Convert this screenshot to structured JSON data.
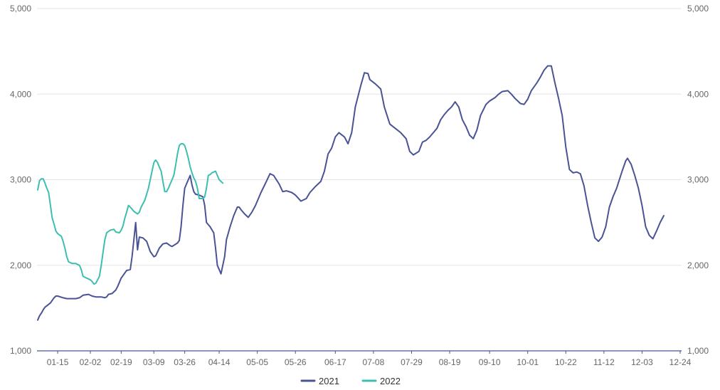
{
  "chart_data": {
    "type": "line",
    "title": "",
    "xlabel": "",
    "ylabel": "",
    "ylim": [
      1000,
      5000
    ],
    "y_ticks": [
      "1,000",
      "2,000",
      "3,000",
      "4,000",
      "5,000"
    ],
    "y_tick_values": [
      1000,
      2000,
      3000,
      4000,
      5000
    ],
    "x_ticks": [
      "01-15",
      "02-02",
      "02-19",
      "03-09",
      "03-26",
      "04-14",
      "05-05",
      "05-26",
      "06-17",
      "07-08",
      "07-29",
      "08-19",
      "09-10",
      "10-01",
      "10-22",
      "11-12",
      "12-03",
      "12-24"
    ],
    "grid": true,
    "legend_position": "bottom-center",
    "colors": {
      "2021": "#4a5394",
      "2022": "#3dbfb0",
      "grid": "#e6e6e6",
      "axis": "#4a5394"
    },
    "series": [
      {
        "name": "2021",
        "points": [
          [
            "01-04",
            1360
          ],
          [
            "01-05",
            1410
          ],
          [
            "01-06",
            1440
          ],
          [
            "01-07",
            1480
          ],
          [
            "01-08",
            1510
          ],
          [
            "01-11",
            1560
          ],
          [
            "01-12",
            1590
          ],
          [
            "01-13",
            1620
          ],
          [
            "01-14",
            1640
          ],
          [
            "01-15",
            1640
          ],
          [
            "01-18",
            1620
          ],
          [
            "01-20",
            1610
          ],
          [
            "01-25",
            1610
          ],
          [
            "01-27",
            1620
          ],
          [
            "01-29",
            1650
          ],
          [
            "02-01",
            1660
          ],
          [
            "02-03",
            1640
          ],
          [
            "02-05",
            1630
          ],
          [
            "02-08",
            1630
          ],
          [
            "02-10",
            1620
          ],
          [
            "02-11",
            1630
          ],
          [
            "02-12",
            1660
          ],
          [
            "02-14",
            1670
          ],
          [
            "02-15",
            1690
          ],
          [
            "02-16",
            1710
          ],
          [
            "02-17",
            1750
          ],
          [
            "02-18",
            1800
          ],
          [
            "02-19",
            1850
          ],
          [
            "02-22",
            1940
          ],
          [
            "02-24",
            1950
          ],
          [
            "02-25",
            2100
          ],
          [
            "02-26",
            2300
          ],
          [
            "02-27",
            2500
          ],
          [
            "02-28",
            2180
          ],
          [
            "03-01",
            2330
          ],
          [
            "03-03",
            2320
          ],
          [
            "03-05",
            2280
          ],
          [
            "03-07",
            2160
          ],
          [
            "03-09",
            2100
          ],
          [
            "03-10",
            2110
          ],
          [
            "03-12",
            2200
          ],
          [
            "03-14",
            2250
          ],
          [
            "03-16",
            2260
          ],
          [
            "03-18",
            2230
          ],
          [
            "03-19",
            2220
          ],
          [
            "03-22",
            2260
          ],
          [
            "03-23",
            2290
          ],
          [
            "03-24",
            2450
          ],
          [
            "03-25",
            2700
          ],
          [
            "03-26",
            2900
          ],
          [
            "03-28",
            3000
          ],
          [
            "03-29",
            3050
          ],
          [
            "03-30",
            2940
          ],
          [
            "03-31",
            2860
          ],
          [
            "04-01",
            2830
          ],
          [
            "04-03",
            2820
          ],
          [
            "04-05",
            2800
          ],
          [
            "04-06",
            2700
          ],
          [
            "04-07",
            2500
          ],
          [
            "04-09",
            2450
          ],
          [
            "04-11",
            2380
          ],
          [
            "04-12",
            2200
          ],
          [
            "04-13",
            2000
          ],
          [
            "04-14",
            1950
          ],
          [
            "04-15",
            1900
          ],
          [
            "04-17",
            2100
          ],
          [
            "04-18",
            2300
          ],
          [
            "04-20",
            2450
          ],
          [
            "04-22",
            2580
          ],
          [
            "04-24",
            2680
          ],
          [
            "04-25",
            2680
          ],
          [
            "04-26",
            2650
          ],
          [
            "04-28",
            2600
          ],
          [
            "04-30",
            2560
          ],
          [
            "05-02",
            2620
          ],
          [
            "05-04",
            2700
          ],
          [
            "05-07",
            2850
          ],
          [
            "05-10",
            2980
          ],
          [
            "05-12",
            3070
          ],
          [
            "05-14",
            3050
          ],
          [
            "05-17",
            2950
          ],
          [
            "05-19",
            2860
          ],
          [
            "05-21",
            2870
          ],
          [
            "05-24",
            2850
          ],
          [
            "05-26",
            2820
          ],
          [
            "05-29",
            2750
          ],
          [
            "06-01",
            2780
          ],
          [
            "06-03",
            2850
          ],
          [
            "06-06",
            2920
          ],
          [
            "06-09",
            2980
          ],
          [
            "06-11",
            3100
          ],
          [
            "06-13",
            3300
          ],
          [
            "06-15",
            3370
          ],
          [
            "06-17",
            3500
          ],
          [
            "06-19",
            3550
          ],
          [
            "06-22",
            3500
          ],
          [
            "06-24",
            3420
          ],
          [
            "06-26",
            3550
          ],
          [
            "06-28",
            3850
          ],
          [
            "07-01",
            4100
          ],
          [
            "07-03",
            4250
          ],
          [
            "07-05",
            4240
          ],
          [
            "07-06",
            4170
          ],
          [
            "07-09",
            4120
          ],
          [
            "07-12",
            4060
          ],
          [
            "07-14",
            3850
          ],
          [
            "07-17",
            3650
          ],
          [
            "07-20",
            3600
          ],
          [
            "07-23",
            3550
          ],
          [
            "07-26",
            3480
          ],
          [
            "07-28",
            3330
          ],
          [
            "07-30",
            3290
          ],
          [
            "08-02",
            3330
          ],
          [
            "08-04",
            3440
          ],
          [
            "08-06",
            3460
          ],
          [
            "08-08",
            3500
          ],
          [
            "08-10",
            3550
          ],
          [
            "08-12",
            3600
          ],
          [
            "08-14",
            3700
          ],
          [
            "08-16",
            3760
          ],
          [
            "08-18",
            3810
          ],
          [
            "08-20",
            3850
          ],
          [
            "08-22",
            3910
          ],
          [
            "08-24",
            3850
          ],
          [
            "08-26",
            3700
          ],
          [
            "08-28",
            3620
          ],
          [
            "08-30",
            3520
          ],
          [
            "09-01",
            3480
          ],
          [
            "09-03",
            3580
          ],
          [
            "09-05",
            3750
          ],
          [
            "09-08",
            3880
          ],
          [
            "09-10",
            3920
          ],
          [
            "09-13",
            3960
          ],
          [
            "09-15",
            4000
          ],
          [
            "09-17",
            4030
          ],
          [
            "09-20",
            4040
          ],
          [
            "09-22",
            4000
          ],
          [
            "09-24",
            3950
          ],
          [
            "09-27",
            3890
          ],
          [
            "09-29",
            3880
          ],
          [
            "10-01",
            3940
          ],
          [
            "10-03",
            4040
          ],
          [
            "10-06",
            4130
          ],
          [
            "10-08",
            4200
          ],
          [
            "10-10",
            4280
          ],
          [
            "10-12",
            4330
          ],
          [
            "10-14",
            4330
          ],
          [
            "10-16",
            4130
          ],
          [
            "10-18",
            3950
          ],
          [
            "10-20",
            3750
          ],
          [
            "10-22",
            3380
          ],
          [
            "10-24",
            3120
          ],
          [
            "10-26",
            3080
          ],
          [
            "10-28",
            3090
          ],
          [
            "10-30",
            3070
          ],
          [
            "11-01",
            2930
          ],
          [
            "11-03",
            2700
          ],
          [
            "11-05",
            2500
          ],
          [
            "11-07",
            2320
          ],
          [
            "11-09",
            2280
          ],
          [
            "11-11",
            2330
          ],
          [
            "11-13",
            2450
          ],
          [
            "11-15",
            2680
          ],
          [
            "11-17",
            2800
          ],
          [
            "11-19",
            2900
          ],
          [
            "11-22",
            3100
          ],
          [
            "11-24",
            3220
          ],
          [
            "11-25",
            3250
          ],
          [
            "11-27",
            3180
          ],
          [
            "11-29",
            3050
          ],
          [
            "12-01",
            2900
          ],
          [
            "12-03",
            2700
          ],
          [
            "12-05",
            2450
          ],
          [
            "12-07",
            2350
          ],
          [
            "12-09",
            2310
          ],
          [
            "12-11",
            2400
          ],
          [
            "12-13",
            2500
          ],
          [
            "12-15",
            2580
          ]
        ]
      },
      {
        "name": "2022",
        "points": [
          [
            "01-04",
            2880
          ],
          [
            "01-05",
            2990
          ],
          [
            "01-06",
            3010
          ],
          [
            "01-07",
            3010
          ],
          [
            "01-08",
            2960
          ],
          [
            "01-09",
            2900
          ],
          [
            "01-10",
            2850
          ],
          [
            "01-11",
            2700
          ],
          [
            "01-12",
            2550
          ],
          [
            "01-13",
            2480
          ],
          [
            "01-14",
            2400
          ],
          [
            "01-15",
            2370
          ],
          [
            "01-17",
            2340
          ],
          [
            "01-18",
            2280
          ],
          [
            "01-19",
            2200
          ],
          [
            "01-20",
            2100
          ],
          [
            "01-21",
            2040
          ],
          [
            "01-23",
            2020
          ],
          [
            "01-25",
            2020
          ],
          [
            "01-27",
            2000
          ],
          [
            "01-28",
            1950
          ],
          [
            "01-29",
            1870
          ],
          [
            "01-31",
            1850
          ],
          [
            "02-02",
            1830
          ],
          [
            "02-03",
            1810
          ],
          [
            "02-04",
            1780
          ],
          [
            "02-05",
            1790
          ],
          [
            "02-06",
            1830
          ],
          [
            "02-07",
            1870
          ],
          [
            "02-08",
            2000
          ],
          [
            "02-09",
            2150
          ],
          [
            "02-10",
            2300
          ],
          [
            "02-11",
            2380
          ],
          [
            "02-13",
            2410
          ],
          [
            "02-15",
            2420
          ],
          [
            "02-16",
            2390
          ],
          [
            "02-18",
            2380
          ],
          [
            "02-19",
            2410
          ],
          [
            "02-20",
            2460
          ],
          [
            "02-21",
            2550
          ],
          [
            "02-22",
            2620
          ],
          [
            "02-23",
            2700
          ],
          [
            "02-24",
            2680
          ],
          [
            "02-26",
            2630
          ],
          [
            "02-28",
            2600
          ],
          [
            "03-01",
            2620
          ],
          [
            "03-02",
            2680
          ],
          [
            "03-04",
            2760
          ],
          [
            "03-05",
            2830
          ],
          [
            "03-06",
            2900
          ],
          [
            "03-07",
            3000
          ],
          [
            "03-08",
            3100
          ],
          [
            "03-09",
            3200
          ],
          [
            "03-10",
            3230
          ],
          [
            "03-11",
            3200
          ],
          [
            "03-12",
            3150
          ],
          [
            "03-13",
            3100
          ],
          [
            "03-14",
            2980
          ],
          [
            "03-15",
            2860
          ],
          [
            "03-16",
            2860
          ],
          [
            "03-17",
            2900
          ],
          [
            "03-18",
            2950
          ],
          [
            "03-19",
            3000
          ],
          [
            "03-20",
            3050
          ],
          [
            "03-21",
            3170
          ],
          [
            "03-22",
            3300
          ],
          [
            "03-23",
            3400
          ],
          [
            "03-24",
            3420
          ],
          [
            "03-25",
            3420
          ],
          [
            "03-26",
            3400
          ],
          [
            "03-27",
            3330
          ],
          [
            "03-28",
            3250
          ],
          [
            "03-29",
            3150
          ],
          [
            "03-30",
            3080
          ],
          [
            "03-31",
            3020
          ],
          [
            "04-01",
            2980
          ],
          [
            "04-02",
            2900
          ],
          [
            "04-03",
            2780
          ],
          [
            "04-05",
            2780
          ],
          [
            "04-06",
            2800
          ],
          [
            "04-07",
            2900
          ],
          [
            "04-08",
            3050
          ],
          [
            "04-09",
            3060
          ],
          [
            "04-10",
            3080
          ],
          [
            "04-11",
            3090
          ],
          [
            "04-12",
            3100
          ],
          [
            "04-13",
            3050
          ],
          [
            "04-14",
            3000
          ],
          [
            "04-15",
            2980
          ],
          [
            "04-16",
            2960
          ]
        ]
      }
    ]
  }
}
